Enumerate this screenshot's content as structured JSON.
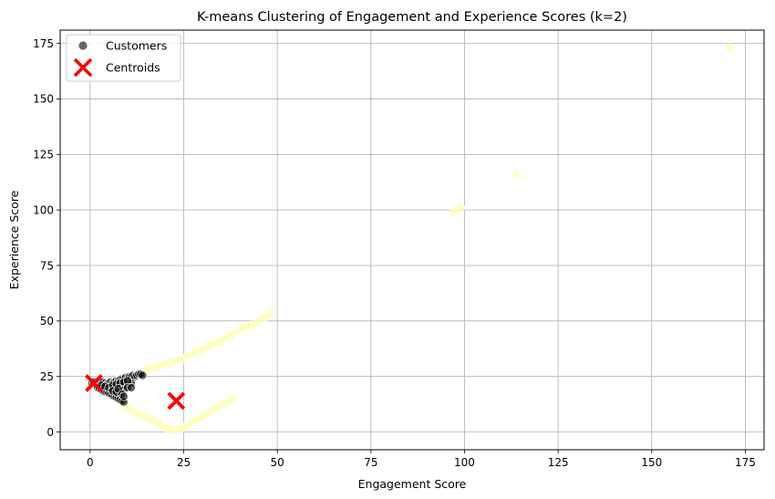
{
  "chart_data": {
    "type": "scatter",
    "title": "K-means Clustering of Engagement and Experience Scores (k=2)",
    "xlabel": "Engagement Score",
    "ylabel": "Experience Score",
    "xlim": [
      -8,
      180
    ],
    "ylim": [
      -8,
      181
    ],
    "xticks": [
      0,
      25,
      50,
      75,
      100,
      125,
      150,
      175
    ],
    "yticks": [
      0,
      25,
      50,
      75,
      100,
      125,
      150,
      175
    ],
    "grid": true,
    "legend_position": "upper-left",
    "legend": [
      "Customers",
      "Centroids"
    ],
    "colors": {
      "cluster_0": "#000000",
      "cluster_1": "#ffffa0",
      "centroid": "#ff0000",
      "grid": "#b0b0b0"
    },
    "series": [
      {
        "name": "Customers",
        "cluster": 0,
        "points": [
          [
            0.5,
            22
          ],
          [
            1,
            22.5
          ],
          [
            1.5,
            21.5
          ],
          [
            2,
            22
          ],
          [
            2.5,
            21
          ],
          [
            3,
            22
          ],
          [
            3.5,
            22.5
          ],
          [
            4,
            22
          ],
          [
            4.5,
            21.5
          ],
          [
            5,
            22
          ],
          [
            5.5,
            22.5
          ],
          [
            6,
            22
          ],
          [
            6.5,
            22.5
          ],
          [
            7,
            23
          ],
          [
            7.5,
            23
          ],
          [
            8,
            23.5
          ],
          [
            8.5,
            24
          ],
          [
            9,
            24
          ],
          [
            9.5,
            24.5
          ],
          [
            10,
            24
          ],
          [
            10.5,
            25
          ],
          [
            11,
            25
          ],
          [
            11.5,
            25.5
          ],
          [
            12,
            25
          ],
          [
            12.5,
            25.5
          ],
          [
            13,
            26
          ],
          [
            13.5,
            26
          ],
          [
            14,
            25.5
          ],
          [
            2,
            20
          ],
          [
            2.5,
            19.5
          ],
          [
            3,
            19
          ],
          [
            3.5,
            18.5
          ],
          [
            4,
            18
          ],
          [
            4.5,
            18
          ],
          [
            5,
            17.5
          ],
          [
            5.5,
            17
          ],
          [
            6,
            16.5
          ],
          [
            6.5,
            16
          ],
          [
            7,
            15.5
          ],
          [
            7.5,
            15
          ],
          [
            8,
            14.5
          ],
          [
            8.5,
            14
          ],
          [
            9,
            13.5
          ],
          [
            3,
            21
          ],
          [
            4,
            20.5
          ],
          [
            5,
            20
          ],
          [
            6,
            19.5
          ],
          [
            7,
            20
          ],
          [
            8,
            20.5
          ],
          [
            9,
            21
          ],
          [
            10,
            21.5
          ],
          [
            11,
            22
          ],
          [
            6,
            21
          ],
          [
            7,
            21.5
          ],
          [
            8,
            22
          ],
          [
            9,
            22.5
          ],
          [
            10,
            23
          ],
          [
            8,
            18
          ],
          [
            9,
            19
          ],
          [
            10,
            20
          ],
          [
            11,
            20
          ],
          [
            6,
            18.5
          ],
          [
            7,
            18
          ],
          [
            7.5,
            19.5
          ],
          [
            8.5,
            17
          ],
          [
            9,
            16
          ]
        ]
      },
      {
        "name": "Customers",
        "cluster": 1,
        "points": [
          [
            14,
            27
          ],
          [
            15,
            28
          ],
          [
            16,
            28.5
          ],
          [
            17,
            29
          ],
          [
            18,
            29.5
          ],
          [
            19,
            30
          ],
          [
            20,
            30.5
          ],
          [
            21,
            31
          ],
          [
            22,
            31.5
          ],
          [
            23,
            32
          ],
          [
            24,
            32.5
          ],
          [
            25,
            33
          ],
          [
            26,
            34
          ],
          [
            27,
            35
          ],
          [
            28,
            36
          ],
          [
            29,
            36.5
          ],
          [
            30,
            37
          ],
          [
            31,
            38
          ],
          [
            32,
            39
          ],
          [
            33,
            40
          ],
          [
            34,
            40.5
          ],
          [
            35,
            41
          ],
          [
            36,
            42
          ],
          [
            37,
            43
          ],
          [
            38,
            44
          ],
          [
            40,
            46
          ],
          [
            41,
            47
          ],
          [
            42,
            47.5
          ],
          [
            43,
            48
          ],
          [
            44,
            49
          ],
          [
            45,
            50
          ],
          [
            46,
            51
          ],
          [
            47,
            52
          ],
          [
            48,
            53
          ],
          [
            9,
            12
          ],
          [
            10,
            11
          ],
          [
            11,
            10
          ],
          [
            12,
            9
          ],
          [
            13,
            8
          ],
          [
            14,
            7
          ],
          [
            15,
            6.5
          ],
          [
            16,
            6
          ],
          [
            17,
            5
          ],
          [
            18,
            4
          ],
          [
            19,
            3
          ],
          [
            20,
            2
          ],
          [
            21,
            1.5
          ],
          [
            22,
            1
          ],
          [
            23,
            1
          ],
          [
            24,
            1.5
          ],
          [
            25,
            2
          ],
          [
            26,
            3
          ],
          [
            27,
            4
          ],
          [
            28,
            5
          ],
          [
            29,
            6
          ],
          [
            30,
            7
          ],
          [
            31,
            8
          ],
          [
            32,
            9
          ],
          [
            33,
            10
          ],
          [
            34,
            11
          ],
          [
            35,
            12
          ],
          [
            36,
            13
          ],
          [
            37,
            14
          ],
          [
            38,
            15
          ],
          [
            97,
            99
          ],
          [
            98,
            100
          ],
          [
            99,
            101
          ],
          [
            114,
            116
          ],
          [
            171,
            173
          ]
        ]
      },
      {
        "name": "Centroids",
        "points": [
          [
            1,
            22
          ],
          [
            23,
            14
          ]
        ]
      }
    ]
  }
}
